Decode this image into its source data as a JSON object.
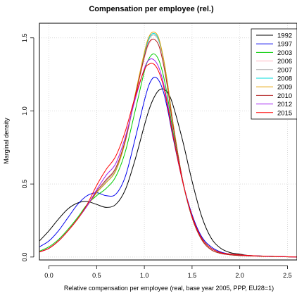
{
  "chart_data": {
    "type": "line",
    "title": "Compensation per employee (rel.)",
    "xlabel": "Relative compensation per employee (real, base year 2005, PPP, EU28=1)",
    "ylabel": "Marginal density",
    "xlim": [
      -0.1,
      2.6
    ],
    "ylim": [
      -0.02,
      1.6
    ],
    "x_ticks": [
      0.0,
      0.5,
      1.0,
      1.5,
      2.0,
      2.5
    ],
    "x_tick_labels": [
      "0.0",
      "0.5",
      "1.0",
      "1.5",
      "2.0",
      "2.5"
    ],
    "y_ticks": [
      0.0,
      0.5,
      1.0,
      1.5
    ],
    "y_tick_labels": [
      "0.0",
      "0.5",
      "1.0",
      "1.5"
    ],
    "grid": true,
    "legend_position": "top-right",
    "x": [
      -0.1,
      0.0,
      0.1,
      0.2,
      0.3,
      0.4,
      0.5,
      0.6,
      0.7,
      0.8,
      0.9,
      1.0,
      1.05,
      1.1,
      1.15,
      1.2,
      1.25,
      1.3,
      1.4,
      1.5,
      1.6,
      1.7,
      1.8,
      1.9,
      2.0,
      2.1,
      2.3,
      2.6
    ],
    "series": [
      {
        "name": "1992",
        "color": "#000000",
        "values": [
          0.11,
          0.18,
          0.26,
          0.33,
          0.37,
          0.38,
          0.36,
          0.34,
          0.36,
          0.46,
          0.66,
          0.9,
          1.01,
          1.09,
          1.14,
          1.15,
          1.12,
          1.04,
          0.8,
          0.52,
          0.28,
          0.13,
          0.06,
          0.03,
          0.02,
          0.01,
          0.005,
          0.0
        ]
      },
      {
        "name": "1997",
        "color": "#0000ee",
        "values": [
          0.07,
          0.11,
          0.18,
          0.27,
          0.36,
          0.42,
          0.44,
          0.42,
          0.43,
          0.55,
          0.8,
          1.07,
          1.18,
          1.23,
          1.21,
          1.13,
          0.99,
          0.82,
          0.52,
          0.29,
          0.14,
          0.07,
          0.035,
          0.02,
          0.015,
          0.01,
          0.005,
          0.0
        ]
      },
      {
        "name": "2003",
        "color": "#00cc00",
        "values": [
          0.04,
          0.07,
          0.12,
          0.19,
          0.27,
          0.36,
          0.42,
          0.47,
          0.55,
          0.72,
          0.99,
          1.27,
          1.36,
          1.39,
          1.35,
          1.24,
          1.07,
          0.86,
          0.52,
          0.27,
          0.13,
          0.06,
          0.03,
          0.02,
          0.015,
          0.01,
          0.005,
          0.0
        ]
      },
      {
        "name": "2006",
        "color": "#ffb6c1",
        "values": [
          0.035,
          0.06,
          0.11,
          0.18,
          0.26,
          0.35,
          0.44,
          0.52,
          0.61,
          0.79,
          1.08,
          1.36,
          1.46,
          1.49,
          1.45,
          1.33,
          1.14,
          0.91,
          0.53,
          0.27,
          0.12,
          0.05,
          0.025,
          0.015,
          0.01,
          0.008,
          0.004,
          0.0
        ]
      },
      {
        "name": "2007",
        "color": "#aaaaaa",
        "values": [
          0.035,
          0.06,
          0.11,
          0.18,
          0.26,
          0.35,
          0.44,
          0.52,
          0.6,
          0.79,
          1.09,
          1.38,
          1.49,
          1.52,
          1.48,
          1.35,
          1.15,
          0.92,
          0.53,
          0.27,
          0.12,
          0.05,
          0.025,
          0.015,
          0.01,
          0.008,
          0.004,
          0.0
        ]
      },
      {
        "name": "2008",
        "color": "#00dddd",
        "values": [
          0.035,
          0.06,
          0.11,
          0.18,
          0.26,
          0.35,
          0.44,
          0.51,
          0.59,
          0.79,
          1.1,
          1.39,
          1.5,
          1.53,
          1.49,
          1.36,
          1.16,
          0.92,
          0.53,
          0.27,
          0.12,
          0.05,
          0.025,
          0.015,
          0.01,
          0.008,
          0.004,
          0.0
        ]
      },
      {
        "name": "2009",
        "color": "#e6a000",
        "values": [
          0.035,
          0.06,
          0.11,
          0.18,
          0.26,
          0.35,
          0.44,
          0.51,
          0.59,
          0.79,
          1.1,
          1.4,
          1.51,
          1.54,
          1.5,
          1.36,
          1.16,
          0.92,
          0.53,
          0.27,
          0.12,
          0.05,
          0.025,
          0.015,
          0.01,
          0.008,
          0.004,
          0.0
        ]
      },
      {
        "name": "2010",
        "color": "#b22222",
        "values": [
          0.035,
          0.06,
          0.11,
          0.18,
          0.26,
          0.35,
          0.45,
          0.53,
          0.61,
          0.8,
          1.09,
          1.37,
          1.47,
          1.49,
          1.45,
          1.32,
          1.13,
          0.9,
          0.53,
          0.27,
          0.12,
          0.05,
          0.025,
          0.015,
          0.01,
          0.008,
          0.004,
          0.0
        ]
      },
      {
        "name": "2012",
        "color": "#a020f0",
        "values": [
          0.035,
          0.06,
          0.11,
          0.18,
          0.26,
          0.35,
          0.46,
          0.56,
          0.64,
          0.82,
          1.07,
          1.29,
          1.35,
          1.35,
          1.3,
          1.19,
          1.03,
          0.84,
          0.52,
          0.28,
          0.13,
          0.06,
          0.03,
          0.02,
          0.015,
          0.01,
          0.005,
          0.0
        ]
      },
      {
        "name": "2015",
        "color": "#ff0000",
        "values": [
          0.035,
          0.06,
          0.11,
          0.18,
          0.26,
          0.36,
          0.49,
          0.6,
          0.69,
          0.86,
          1.09,
          1.28,
          1.32,
          1.32,
          1.27,
          1.17,
          1.01,
          0.83,
          0.52,
          0.28,
          0.13,
          0.06,
          0.03,
          0.02,
          0.015,
          0.01,
          0.005,
          0.0
        ]
      }
    ]
  }
}
